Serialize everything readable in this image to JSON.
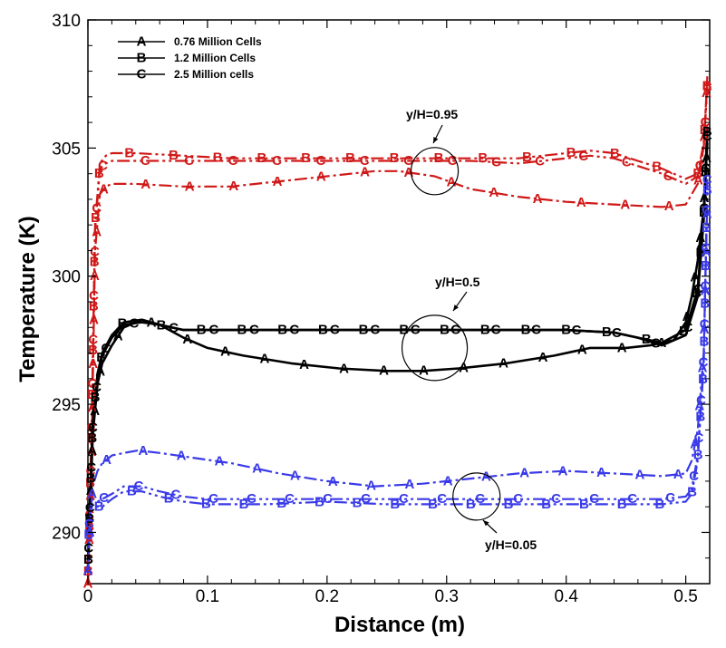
{
  "chart_data": {
    "type": "line",
    "title": "",
    "xlabel": "Distance (m)",
    "ylabel": "Temperature (K)",
    "xlim": [
      0,
      0.52
    ],
    "ylim": [
      288,
      310
    ],
    "xticks": [
      0,
      0.1,
      0.2,
      0.3,
      0.4,
      0.5
    ],
    "yticks": [
      290,
      295,
      300,
      305,
      310
    ],
    "xtick_labels": [
      "0",
      "0.1",
      "0.2",
      "0.3",
      "0.4",
      "0.5"
    ],
    "ytick_labels": [
      "290",
      "295",
      "300",
      "305",
      "310"
    ],
    "legend": {
      "placement": "top-left",
      "entries": [
        {
          "marker": "A",
          "label": "0.76 Million Cells"
        },
        {
          "marker": "B",
          "label": "1.2 Million Cells"
        },
        {
          "marker": "C",
          "label": "2.5 Million cells"
        }
      ]
    },
    "annotations": [
      {
        "text": "y/H=0.95",
        "circle_center": [
          0.29,
          304.1
        ]
      },
      {
        "text": "y/H=0.5",
        "circle_center": [
          0.29,
          297.2
        ]
      },
      {
        "text": "y/H=0.05",
        "circle_center": [
          0.325,
          291.4
        ]
      }
    ],
    "series": [
      {
        "name": "y/H=0.95, 0.76 Million Cells",
        "marker": "A",
        "color": "#d01818",
        "dash": "dashdot",
        "x": [
          0,
          0.003,
          0.006,
          0.01,
          0.015,
          0.02,
          0.04,
          0.08,
          0.12,
          0.16,
          0.2,
          0.24,
          0.26,
          0.29,
          0.32,
          0.36,
          0.4,
          0.44,
          0.48,
          0.5,
          0.51,
          0.515,
          0.518
        ],
        "y": [
          288,
          293,
          301,
          303.2,
          303.5,
          303.6,
          303.6,
          303.5,
          303.5,
          303.7,
          303.9,
          304.1,
          304.1,
          303.9,
          303.4,
          303.1,
          302.9,
          302.8,
          302.7,
          302.8,
          303.6,
          305,
          307.8
        ]
      },
      {
        "name": "y/H=0.95, 1.2 Million Cells",
        "marker": "B",
        "color": "#d01818",
        "dash": "dashdotdot",
        "x": [
          0,
          0.003,
          0.006,
          0.01,
          0.015,
          0.02,
          0.04,
          0.08,
          0.12,
          0.16,
          0.2,
          0.24,
          0.28,
          0.32,
          0.36,
          0.4,
          0.42,
          0.44,
          0.46,
          0.48,
          0.5,
          0.51,
          0.515,
          0.518
        ],
        "y": [
          288,
          294,
          302,
          304.4,
          304.7,
          304.8,
          304.8,
          304.7,
          304.6,
          304.6,
          304.6,
          304.6,
          304.6,
          304.6,
          304.6,
          304.8,
          304.9,
          304.8,
          304.5,
          304.2,
          303.8,
          304,
          305.2,
          307.6
        ]
      },
      {
        "name": "y/H=0.95, 2.5 Million cells",
        "marker": "C",
        "color": "#d01818",
        "dash": "dashdotdot",
        "x": [
          0,
          0.003,
          0.006,
          0.01,
          0.015,
          0.02,
          0.04,
          0.08,
          0.12,
          0.16,
          0.2,
          0.24,
          0.28,
          0.32,
          0.36,
          0.4,
          0.42,
          0.44,
          0.46,
          0.48,
          0.5,
          0.51,
          0.515,
          0.518
        ],
        "y": [
          288,
          293.8,
          301.8,
          304.2,
          304.4,
          304.5,
          304.5,
          304.5,
          304.5,
          304.5,
          304.5,
          304.5,
          304.5,
          304.5,
          304.4,
          304.6,
          304.7,
          304.6,
          304.3,
          304.0,
          303.6,
          303.9,
          305.0,
          307.4
        ]
      },
      {
        "name": "y/H=0.5, 0.76 Million Cells",
        "marker": "A",
        "color": "#000000",
        "dash": "solid",
        "x": [
          0,
          0.002,
          0.004,
          0.008,
          0.012,
          0.02,
          0.03,
          0.045,
          0.06,
          0.08,
          0.1,
          0.13,
          0.17,
          0.21,
          0.25,
          0.28,
          0.31,
          0.35,
          0.39,
          0.42,
          0.45,
          0.47,
          0.49,
          0.5,
          0.505,
          0.51,
          0.515,
          0.518
        ],
        "y": [
          288.5,
          291,
          293.8,
          295.8,
          296.6,
          297.3,
          298.0,
          298.3,
          298.1,
          297.6,
          297.2,
          296.9,
          296.6,
          296.4,
          296.3,
          296.3,
          296.4,
          296.6,
          296.9,
          297.2,
          297.2,
          297.3,
          297.5,
          298.2,
          299.2,
          300.6,
          302.6,
          305.2
        ]
      },
      {
        "name": "y/H=0.5, 1.2 Million Cells",
        "marker": "B",
        "color": "#000000",
        "dash": "solid",
        "x": [
          0,
          0.002,
          0.004,
          0.008,
          0.012,
          0.02,
          0.03,
          0.045,
          0.06,
          0.08,
          0.1,
          0.15,
          0.2,
          0.25,
          0.3,
          0.35,
          0.4,
          0.44,
          0.46,
          0.48,
          0.5,
          0.51,
          0.515,
          0.518
        ],
        "y": [
          288.5,
          291.5,
          294.2,
          296.2,
          297.0,
          297.7,
          298.2,
          298.3,
          298.1,
          297.9,
          297.9,
          297.9,
          297.9,
          297.9,
          297.9,
          297.9,
          297.9,
          297.8,
          297.6,
          297.4,
          297.9,
          299.5,
          302.5,
          305.8
        ]
      },
      {
        "name": "y/H=0.5, 2.5 Million cells",
        "marker": "C",
        "color": "#000000",
        "dash": "solid",
        "x": [
          0,
          0.002,
          0.004,
          0.008,
          0.012,
          0.02,
          0.03,
          0.045,
          0.06,
          0.08,
          0.1,
          0.15,
          0.2,
          0.25,
          0.3,
          0.35,
          0.4,
          0.44,
          0.46,
          0.48,
          0.5,
          0.51,
          0.515,
          0.518
        ],
        "y": [
          288.5,
          291.3,
          294.0,
          296.0,
          296.9,
          297.6,
          298.1,
          298.2,
          298.1,
          297.9,
          297.9,
          297.9,
          297.9,
          297.9,
          297.9,
          297.9,
          297.9,
          297.8,
          297.6,
          297.3,
          297.7,
          299.2,
          302.2,
          305.5
        ]
      },
      {
        "name": "y/H=0.05, 0.76 Million Cells",
        "marker": "A",
        "color": "#3a3ae8",
        "dash": "dashdot",
        "x": [
          0,
          0.002,
          0.004,
          0.008,
          0.012,
          0.02,
          0.03,
          0.042,
          0.06,
          0.09,
          0.12,
          0.16,
          0.2,
          0.24,
          0.28,
          0.32,
          0.36,
          0.4,
          0.44,
          0.48,
          0.5,
          0.505,
          0.51,
          0.515,
          0.518
        ],
        "y": [
          288.5,
          290.5,
          291.8,
          292.4,
          292.7,
          293.0,
          293.1,
          293.2,
          293.1,
          292.9,
          292.7,
          292.3,
          292.0,
          291.8,
          291.9,
          292.1,
          292.3,
          292.4,
          292.3,
          292.2,
          292.3,
          292.8,
          294.0,
          297.0,
          303.0
        ]
      },
      {
        "name": "y/H=0.05, 1.2 Million Cells",
        "marker": "B",
        "color": "#3a3ae8",
        "dash": "dashdotdot",
        "x": [
          0,
          0.002,
          0.004,
          0.008,
          0.012,
          0.02,
          0.03,
          0.045,
          0.06,
          0.08,
          0.1,
          0.15,
          0.2,
          0.25,
          0.3,
          0.35,
          0.4,
          0.45,
          0.48,
          0.5,
          0.505,
          0.51,
          0.515,
          0.518
        ],
        "y": [
          289.5,
          290.8,
          291.1,
          291.0,
          291.0,
          291.3,
          291.6,
          291.6,
          291.4,
          291.2,
          291.1,
          291.1,
          291.2,
          291.1,
          291.1,
          291.1,
          291.1,
          291.1,
          291.1,
          291.2,
          291.5,
          292.8,
          296.5,
          303.5
        ]
      },
      {
        "name": "y/H=0.05, 2.5 Million cells",
        "marker": "C",
        "color": "#3a3ae8",
        "dash": "dashdotdot",
        "x": [
          0,
          0.002,
          0.004,
          0.008,
          0.012,
          0.02,
          0.03,
          0.045,
          0.06,
          0.08,
          0.1,
          0.15,
          0.2,
          0.25,
          0.3,
          0.35,
          0.4,
          0.45,
          0.48,
          0.5,
          0.505,
          0.51,
          0.515,
          0.518
        ],
        "y": [
          289.5,
          291.0,
          291.3,
          291.2,
          291.3,
          291.5,
          291.8,
          291.8,
          291.6,
          291.4,
          291.3,
          291.3,
          291.3,
          291.3,
          291.3,
          291.3,
          291.3,
          291.3,
          291.3,
          291.4,
          291.7,
          293.0,
          296.8,
          303.8
        ]
      }
    ]
  }
}
